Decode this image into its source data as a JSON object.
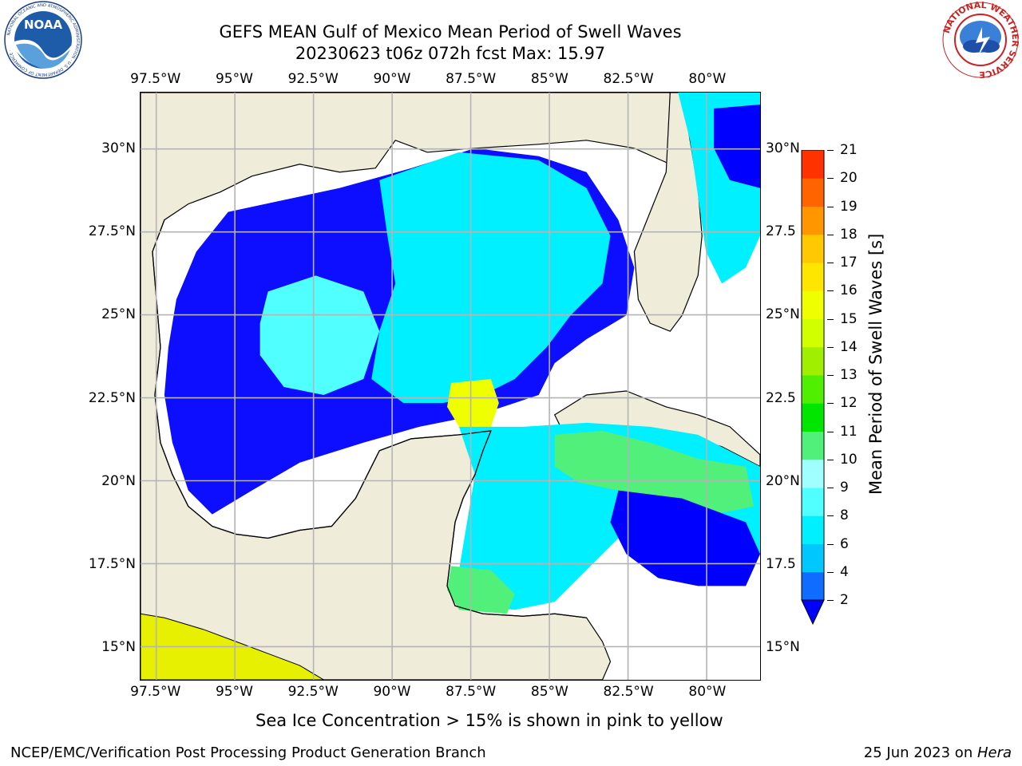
{
  "header": {
    "title_line1": "GEFS MEAN Gulf of Mexico Mean Period of Swell Waves",
    "title_line2": "20230623 t06z 072h fcst   Max: 15.97"
  },
  "logos": {
    "noaa_text": "NOAA",
    "noaa_ring": "NATIONAL OCEANIC AND ATMOSPHERIC ADMINISTRATION · U.S. DEPARTMENT OF COMMERCE ·",
    "nws_ring": "NATIONAL WEATHER SERVICE"
  },
  "axes": {
    "lon_ticks": [
      "97.5°W",
      "95°W",
      "92.5°W",
      "90°W",
      "87.5°W",
      "85°W",
      "82.5°W",
      "80°W"
    ],
    "lon_values": [
      -97.5,
      -95,
      -92.5,
      -90,
      -87.5,
      -85,
      -82.5,
      -80
    ],
    "lat_ticks_left": [
      "30°N",
      "27.5°N",
      "25°N",
      "22.5°N",
      "20°N",
      "17.5°N",
      "15°N"
    ],
    "lat_ticks_right": [
      "30°N",
      "27.5",
      "25°N",
      "22.5",
      "20°N",
      "17.5",
      "15°N"
    ],
    "lat_values": [
      30,
      27.5,
      25,
      22.5,
      20,
      17.5,
      15
    ],
    "lon_range": [
      -98,
      -78.3
    ],
    "lat_range": [
      14,
      31.7
    ]
  },
  "colorbar": {
    "label": "Mean Period of Swell Waves [s]",
    "tick_labels": [
      "2",
      "4",
      "6",
      "8",
      "9",
      "10",
      "11",
      "12",
      "13",
      "14",
      "15",
      "16",
      "17",
      "18",
      "19",
      "20",
      "21"
    ],
    "levels": [
      2,
      4,
      6,
      8,
      9,
      10,
      11,
      12,
      13,
      14,
      15,
      16,
      17,
      18,
      19,
      20,
      21
    ],
    "colors": [
      "#0f6cff",
      "#00c8ff",
      "#00f0ff",
      "#50ffff",
      "#a0ffff",
      "#50f07a",
      "#00e600",
      "#50ee00",
      "#a0ee00",
      "#d2ff00",
      "#f0ff00",
      "#ffe600",
      "#ffc800",
      "#ff9600",
      "#ff6400",
      "#ff3200"
    ],
    "under_color": "#0000ff"
  },
  "note": "Sea Ice Concentration > 15% is shown in pink to yellow",
  "footer": {
    "left": "NCEP/EMC/Verification Post Processing Product Generation Branch",
    "right_date": "25 Jun 2023 on ",
    "right_host": "Hera"
  },
  "colors": {
    "land": "#efedd9",
    "coastline": "#000000",
    "grid": "#b4b4b4"
  }
}
